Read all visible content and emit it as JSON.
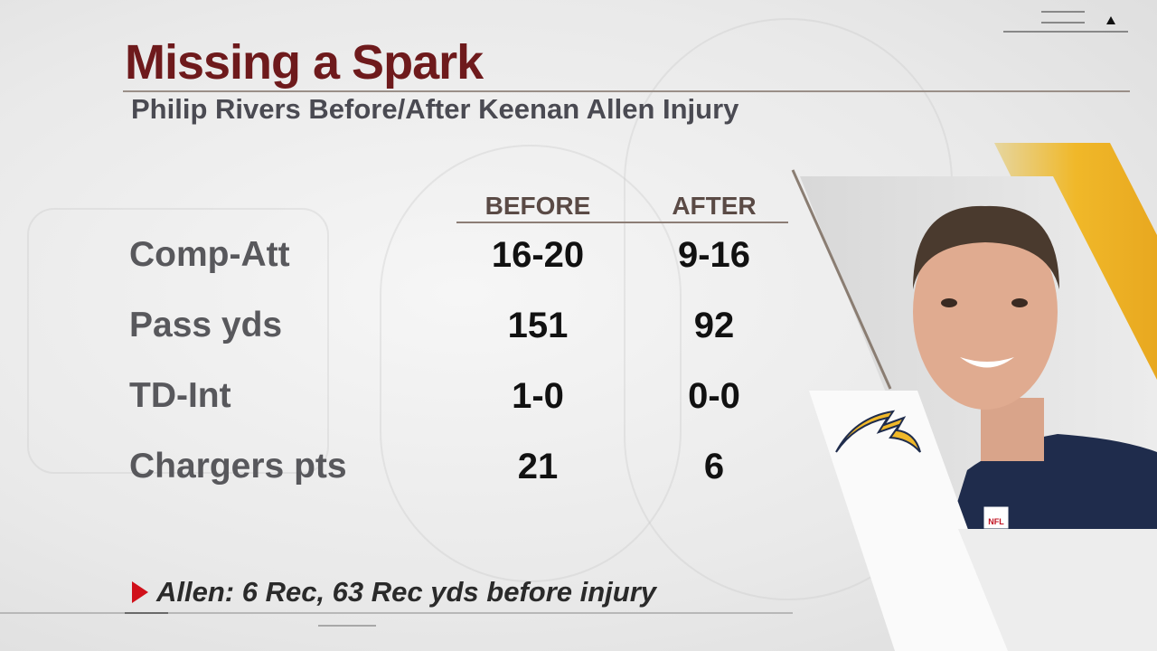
{
  "header": {
    "title": "Missing a Spark",
    "subtitle": "Philip Rivers Before/After Keenan Allen Injury"
  },
  "table": {
    "columns": [
      "BEFORE",
      "AFTER"
    ],
    "rows": [
      {
        "label": "Comp-Att",
        "before": "16-20",
        "after": "9-16"
      },
      {
        "label": "Pass yds",
        "before": "151",
        "after": "92"
      },
      {
        "label": "TD-Int",
        "before": "1-0",
        "after": "0-0"
      },
      {
        "label": "Chargers pts",
        "before": "21",
        "after": "6"
      }
    ]
  },
  "footnote": {
    "icon": "triangle-right-icon",
    "text": "Allen: 6 Rec, 63 Rec yds before injury"
  },
  "player": {
    "logo": "chargers-bolt-logo",
    "jersey_patch": "NFL"
  },
  "colors": {
    "title": "#6e1a1c",
    "accent_red": "#d0101a",
    "chargers_gold": "#f0b829",
    "navy": "#1f2c4c"
  }
}
